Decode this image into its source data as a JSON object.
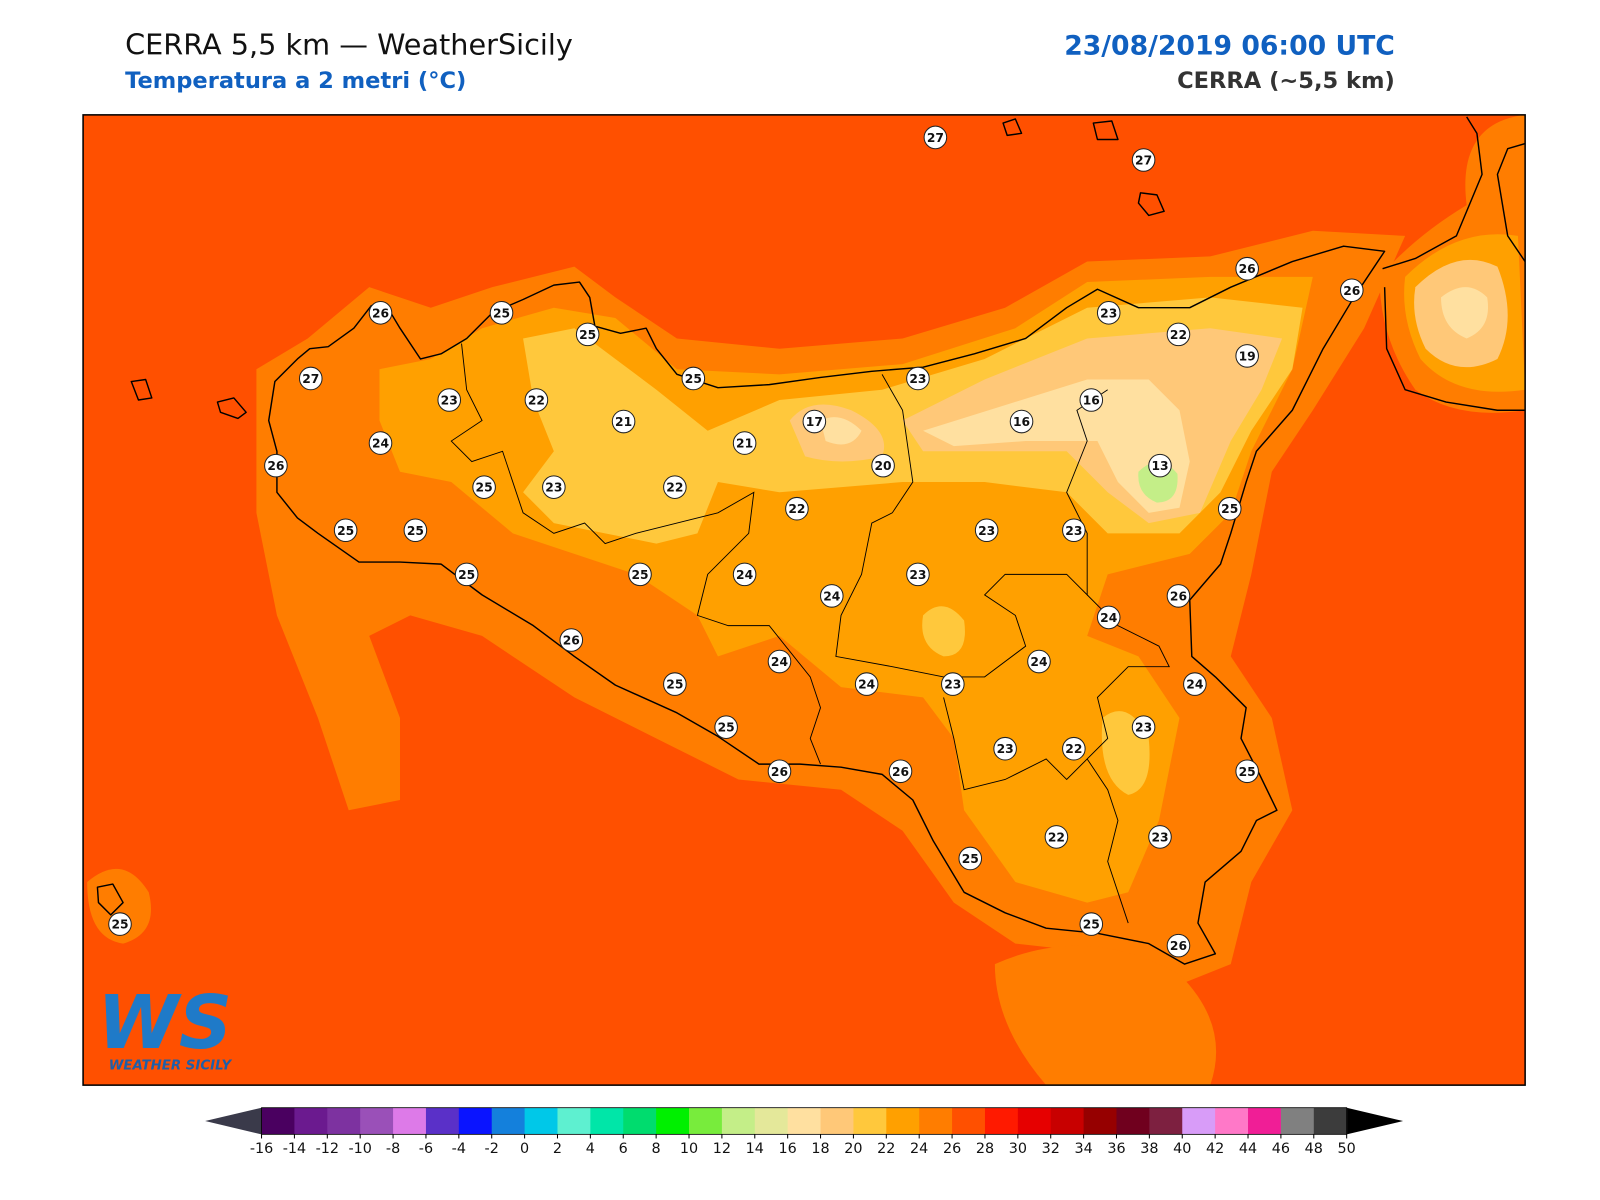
{
  "header": {
    "title": "CERRA 5,5 km — WeatherSicily",
    "subtitle": "Temperatura a 2 metri (°C)",
    "datetime": "23/08/2019 06:00 UTC",
    "model": "CERRA (~5,5 km)"
  },
  "stations": [
    27,
    27,
    26,
    26,
    26,
    25,
    25,
    23,
    22,
    19,
    27,
    25,
    23,
    23,
    22,
    16,
    21,
    17,
    16,
    24,
    21,
    26,
    20,
    13,
    25,
    23,
    22,
    22,
    25,
    25,
    25,
    23,
    23,
    25,
    25,
    24,
    23,
    24,
    26,
    24,
    26,
    24,
    24,
    25,
    24,
    23,
    24,
    25,
    23,
    23,
    22,
    26,
    26,
    25,
    25,
    22,
    23,
    25,
    25,
    26
  ],
  "colorbar": {
    "ticks": [
      -16,
      -14,
      -12,
      -10,
      -8,
      -6,
      -4,
      -2,
      0,
      2,
      4,
      6,
      8,
      10,
      12,
      14,
      16,
      18,
      20,
      22,
      24,
      26,
      28,
      30,
      32,
      34,
      36,
      38,
      40,
      42,
      44,
      46,
      48,
      50
    ],
    "colors": [
      "#4a0060",
      "#6b1a8f",
      "#7d32a0",
      "#9a50b8",
      "#dd7ae8",
      "#5a30c8",
      "#0a14ff",
      "#1480dc",
      "#00c8e8",
      "#5ef0d0",
      "#00e6a8",
      "#00dc6e",
      "#00f000",
      "#78ec3c",
      "#c4ee88",
      "#e4e89a",
      "#ffe0a0",
      "#ffc878",
      "#ffc83c",
      "#ffa000",
      "#ff7d00",
      "#ff5000",
      "#ff1a00",
      "#e60000",
      "#c80000",
      "#960000",
      "#70001e",
      "#7d2040",
      "#d89cf8",
      "#ff78c8",
      "#f01e96",
      "#808080",
      "#3c3c3c"
    ],
    "under_color": "#3a3a4a",
    "over_color": "#000000"
  },
  "logo": {
    "text": "WS",
    "caption": "WEATHER SICILY"
  }
}
